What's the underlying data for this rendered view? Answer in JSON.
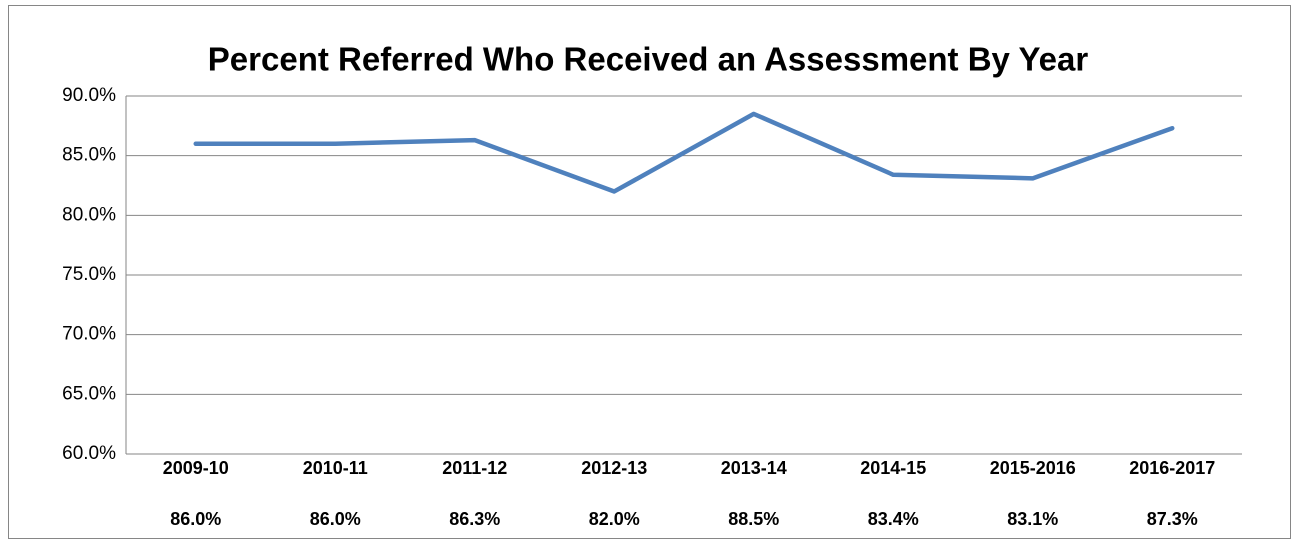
{
  "chart_data": {
    "type": "line",
    "title": "Percent Referred Who Received an Assessment By Year",
    "categories": [
      "2009-10",
      "2010-11",
      "2011-12",
      "2012-13",
      "2013-14",
      "2014-15",
      "2015-2016",
      "2016-2017"
    ],
    "series": [
      {
        "color": "#4f81bd",
        "values": [
          86.0,
          86.0,
          86.3,
          82.0,
          88.5,
          83.4,
          83.1,
          87.3
        ],
        "value_labels": [
          "86.0%",
          "86.0%",
          "86.3%",
          "82.0%",
          "88.5%",
          "83.4%",
          "83.1%",
          "87.3%"
        ]
      }
    ],
    "ylim": [
      60,
      90
    ],
    "yticks": [
      {
        "value": 60,
        "label": "60.0%"
      },
      {
        "value": 65,
        "label": "65.0%"
      },
      {
        "value": 70,
        "label": "70.0%"
      },
      {
        "value": 75,
        "label": "75.0%"
      },
      {
        "value": 80,
        "label": "80.0%"
      },
      {
        "value": 85,
        "label": "85.0%"
      },
      {
        "value": 90,
        "label": "90.0%"
      }
    ],
    "grid": true
  }
}
